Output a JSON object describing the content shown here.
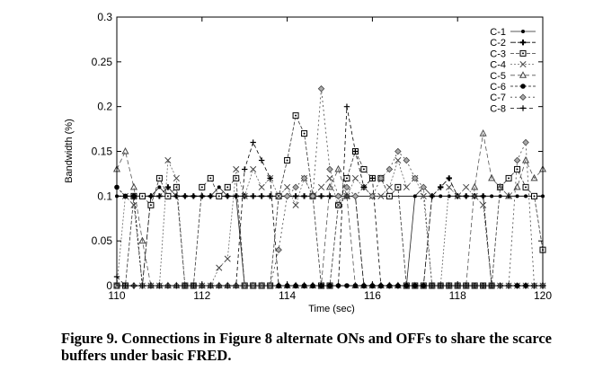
{
  "figure": {
    "caption": "Figure 9.  Connections in Figure 8 alternate ONs and OFFs to share the scarce buffers under basic FRED."
  },
  "chart_data": {
    "type": "line",
    "title": "",
    "xlabel": "Time (sec)",
    "ylabel": "Bandwidth (%)",
    "xlim": [
      110,
      120
    ],
    "ylim": [
      0,
      0.3
    ],
    "xticks": [
      110,
      112,
      114,
      116,
      118,
      120
    ],
    "yticks": [
      0,
      0.05,
      0.1,
      0.15,
      0.2,
      0.25,
      0.3
    ],
    "xtick_labels": [
      "110",
      "112",
      "114",
      "116",
      "118",
      "120"
    ],
    "ytick_labels": [
      "0",
      "0.05",
      "0.1",
      "0.15",
      "0.2",
      "0.25",
      "0.3"
    ],
    "grid": false,
    "legend_position": "top-right",
    "reference_line_y": 0.1,
    "series": [
      {
        "name": "C-1",
        "marker": "dot",
        "x": [
          110.0,
          110.2,
          110.4,
          110.6,
          110.8,
          111.0,
          111.2,
          111.4,
          111.6,
          111.8,
          112.0,
          112.2,
          112.4,
          112.6,
          112.8,
          113.0,
          113.2,
          113.4,
          113.6,
          113.8,
          114.0,
          114.2,
          114.4,
          114.6,
          114.8,
          115.0,
          115.2,
          115.4,
          115.6,
          115.8,
          116.0,
          116.2,
          116.4,
          116.6,
          116.8,
          117.0,
          117.2,
          117.4,
          117.6,
          117.8,
          118.0,
          118.2,
          118.4,
          118.6,
          118.8,
          119.0,
          119.2,
          119.4,
          119.6,
          119.8,
          120.0
        ],
        "y": [
          0.1,
          0.1,
          0.1,
          0.1,
          0.1,
          0.11,
          0.1,
          0.1,
          0.1,
          0.1,
          0.1,
          0.1,
          0.11,
          0.1,
          0.1,
          0.0,
          0.0,
          0.0,
          0.0,
          0.0,
          0.0,
          0.0,
          0.0,
          0.0,
          0.0,
          0.0,
          0.0,
          0.0,
          0.0,
          0.0,
          0.0,
          0.0,
          0.0,
          0.0,
          0.0,
          0.1,
          0.11,
          0.1,
          0.1,
          0.1,
          0.1,
          0.1,
          0.1,
          0.1,
          0.1,
          0.1,
          0.1,
          0.1,
          0.1,
          0.1,
          0.1
        ]
      },
      {
        "name": "C-2",
        "marker": "plus-bold",
        "x": [
          110.0,
          110.2,
          110.4,
          110.6,
          110.8,
          111.0,
          111.2,
          111.4,
          111.6,
          111.8,
          112.0,
          112.2,
          112.4,
          112.6,
          112.8,
          113.0,
          113.2,
          113.4,
          113.6,
          113.8,
          114.0,
          114.2,
          114.4,
          114.6,
          114.8,
          115.0,
          115.2,
          115.4,
          115.6,
          115.8,
          116.0,
          116.2,
          116.4,
          116.6,
          116.8,
          117.0,
          117.2,
          117.4,
          117.6,
          117.8,
          118.0,
          118.2,
          118.4,
          118.6,
          118.8,
          119.0,
          119.2,
          119.4,
          119.6,
          119.8,
          120.0
        ],
        "y": [
          0.0,
          0.0,
          0.0,
          0.0,
          0.1,
          0.1,
          0.11,
          0.1,
          0.1,
          0.1,
          0.1,
          0.1,
          0.1,
          0.1,
          0.1,
          0.1,
          0.1,
          0.1,
          0.1,
          0.1,
          0.1,
          0.1,
          0.1,
          0.1,
          0.1,
          0.1,
          0.1,
          0.1,
          0.1,
          0.0,
          0.0,
          0.0,
          0.0,
          0.0,
          0.0,
          0.0,
          0.0,
          0.1,
          0.11,
          0.12,
          0.1,
          0.1,
          0.1,
          0.1,
          0.0,
          0.0,
          0.0,
          0.0,
          0.0,
          0.0,
          0.0
        ]
      },
      {
        "name": "C-3",
        "marker": "square-dot",
        "x": [
          110.0,
          110.2,
          110.4,
          110.6,
          110.8,
          111.0,
          111.2,
          111.4,
          111.6,
          111.8,
          112.0,
          112.2,
          112.4,
          112.6,
          112.8,
          113.0,
          113.2,
          113.4,
          113.6,
          113.8,
          114.0,
          114.2,
          114.4,
          114.6,
          114.8,
          115.0,
          115.2,
          115.4,
          115.6,
          115.8,
          116.0,
          116.2,
          116.4,
          116.6,
          116.8,
          117.0,
          117.2,
          117.4,
          117.6,
          117.8,
          118.0,
          118.2,
          118.4,
          118.6,
          118.8,
          119.0,
          119.2,
          119.4,
          119.6,
          119.8,
          120.0
        ],
        "y": [
          0.0,
          0.0,
          0.1,
          0.1,
          0.09,
          0.12,
          0.1,
          0.11,
          0.0,
          0.0,
          0.11,
          0.12,
          0.1,
          0.11,
          0.12,
          0.0,
          0.0,
          0.0,
          0.0,
          0.1,
          0.14,
          0.19,
          0.17,
          0.1,
          0.0,
          0.0,
          0.09,
          0.12,
          0.15,
          0.13,
          0.12,
          0.12,
          0.1,
          0.11,
          0.0,
          0.0,
          0.0,
          0.0,
          0.0,
          0.0,
          0.0,
          0.0,
          0.0,
          0.0,
          0.0,
          0.11,
          0.12,
          0.13,
          0.11,
          0.1,
          0.04
        ]
      },
      {
        "name": "C-4",
        "marker": "x",
        "x": [
          110.0,
          110.2,
          110.4,
          110.6,
          110.8,
          111.0,
          111.2,
          111.4,
          111.6,
          111.8,
          112.0,
          112.2,
          112.4,
          112.6,
          112.8,
          113.0,
          113.2,
          113.4,
          113.6,
          113.8,
          114.0,
          114.2,
          114.4,
          114.6,
          114.8,
          115.0,
          115.2,
          115.4,
          115.6,
          115.8,
          116.0,
          116.2,
          116.4,
          116.6,
          116.8,
          117.0,
          117.2,
          117.4,
          117.6,
          117.8,
          118.0,
          118.2,
          118.4,
          118.6,
          118.8,
          119.0,
          119.2,
          119.4,
          119.6,
          119.8,
          120.0
        ],
        "y": [
          0.0,
          0.1,
          0.09,
          0.0,
          0.0,
          0.0,
          0.14,
          0.12,
          0.0,
          0.0,
          0.0,
          0.0,
          0.02,
          0.03,
          0.13,
          0.1,
          0.13,
          0.11,
          0.12,
          0.1,
          0.11,
          0.09,
          0.12,
          0.1,
          0.11,
          0.12,
          0.09,
          0.1,
          0.12,
          0.11,
          0.1,
          0.1,
          0.11,
          0.14,
          0.11,
          0.12,
          0.1,
          0.0,
          0.0,
          0.11,
          0.1,
          0.11,
          0.1,
          0.09,
          0.0,
          0.0,
          0.0,
          0.0,
          0.0,
          0.0,
          0.0
        ]
      },
      {
        "name": "C-5",
        "marker": "triangle",
        "x": [
          110.0,
          110.2,
          110.4,
          110.6,
          110.8,
          111.0,
          111.2,
          111.4,
          111.6,
          111.8,
          112.0,
          112.2,
          112.4,
          112.6,
          112.8,
          113.0,
          113.2,
          113.4,
          113.6,
          113.8,
          114.0,
          114.2,
          114.4,
          114.6,
          114.8,
          115.0,
          115.2,
          115.4,
          115.6,
          115.8,
          116.0,
          116.2,
          116.4,
          116.6,
          116.8,
          117.0,
          117.2,
          117.4,
          117.6,
          117.8,
          118.0,
          118.2,
          118.4,
          118.6,
          118.8,
          119.0,
          119.2,
          119.4,
          119.6,
          119.8,
          120.0
        ],
        "y": [
          0.13,
          0.15,
          0.11,
          0.05,
          0.0,
          0.0,
          0.0,
          0.0,
          0.0,
          0.0,
          0.0,
          0.0,
          0.0,
          0.0,
          0.0,
          0.0,
          0.0,
          0.0,
          0.0,
          0.0,
          0.0,
          0.0,
          0.0,
          0.0,
          0.0,
          0.11,
          0.13,
          0.1,
          0.0,
          0.0,
          0.0,
          0.0,
          0.0,
          0.0,
          0.0,
          0.0,
          0.0,
          0.0,
          0.0,
          0.0,
          0.0,
          0.0,
          0.11,
          0.17,
          0.12,
          0.11,
          0.1,
          0.11,
          0.14,
          0.12,
          0.13
        ]
      },
      {
        "name": "C-6",
        "marker": "dot-large",
        "x": [
          110.0,
          110.2,
          110.4,
          110.6,
          110.8,
          111.0,
          111.2,
          111.4,
          111.6,
          111.8,
          112.0,
          112.2,
          112.4,
          112.6,
          112.8,
          113.0,
          113.2,
          113.4,
          113.6,
          113.8,
          114.0,
          114.2,
          114.4,
          114.6,
          114.8,
          115.0,
          115.2,
          115.4,
          115.6,
          115.8,
          116.0,
          116.2,
          116.4,
          116.6,
          116.8,
          117.0,
          117.2,
          117.4,
          117.6,
          117.8,
          118.0,
          118.2,
          118.4,
          118.6,
          118.8,
          119.0,
          119.2,
          119.4,
          119.6,
          119.8,
          120.0
        ],
        "y": [
          0.11,
          0.1,
          0.1,
          0.0,
          0.0,
          0.0,
          0.0,
          0.0,
          0.0,
          0.0,
          0.0,
          0.0,
          0.0,
          0.0,
          0.0,
          0.0,
          0.0,
          0.0,
          0.0,
          0.0,
          0.0,
          0.0,
          0.0,
          0.0,
          0.0,
          0.0,
          0.0,
          0.0,
          0.0,
          0.0,
          0.0,
          0.0,
          0.0,
          0.0,
          0.0,
          0.0,
          0.0,
          0.0,
          0.0,
          0.0,
          0.0,
          0.0,
          0.0,
          0.0,
          0.0,
          0.0,
          0.0,
          0.0,
          0.0,
          0.0,
          0.0
        ]
      },
      {
        "name": "C-7",
        "marker": "diamond",
        "x": [
          110.0,
          110.2,
          110.4,
          110.6,
          110.8,
          111.0,
          111.2,
          111.4,
          111.6,
          111.8,
          112.0,
          112.2,
          112.4,
          112.6,
          112.8,
          113.0,
          113.2,
          113.4,
          113.6,
          113.8,
          114.0,
          114.2,
          114.4,
          114.6,
          114.8,
          115.0,
          115.2,
          115.4,
          115.6,
          115.8,
          116.0,
          116.2,
          116.4,
          116.6,
          116.8,
          117.0,
          117.2,
          117.4,
          117.6,
          117.8,
          118.0,
          118.2,
          118.4,
          118.6,
          118.8,
          119.0,
          119.2,
          119.4,
          119.6,
          119.8,
          120.0
        ],
        "y": [
          0.0,
          0.0,
          0.0,
          0.0,
          0.0,
          0.0,
          0.0,
          0.0,
          0.0,
          0.0,
          0.0,
          0.0,
          0.0,
          0.0,
          0.0,
          0.0,
          0.0,
          0.0,
          0.0,
          0.04,
          0.1,
          0.11,
          0.12,
          0.1,
          0.22,
          0.13,
          0.1,
          0.11,
          0.1,
          0.11,
          0.1,
          0.12,
          0.13,
          0.15,
          0.14,
          0.12,
          0.11,
          0.0,
          0.0,
          0.0,
          0.0,
          0.0,
          0.0,
          0.0,
          0.0,
          0.0,
          0.0,
          0.14,
          0.16,
          0.0,
          0.0
        ]
      },
      {
        "name": "C-8",
        "marker": "plus",
        "x": [
          110.0,
          110.2,
          110.4,
          110.6,
          110.8,
          111.0,
          111.2,
          111.4,
          111.6,
          111.8,
          112.0,
          112.2,
          112.4,
          112.6,
          112.8,
          113.0,
          113.2,
          113.4,
          113.6,
          113.8,
          114.0,
          114.2,
          114.4,
          114.6,
          114.8,
          115.0,
          115.2,
          115.4,
          115.6,
          115.8,
          116.0,
          116.2,
          116.4,
          116.6,
          116.8,
          117.0,
          117.2,
          117.4,
          117.6,
          117.8,
          118.0,
          118.2,
          118.4,
          118.6,
          118.8,
          119.0,
          119.2,
          119.4,
          119.6,
          119.8,
          120.0
        ],
        "y": [
          0.01,
          0.0,
          0.0,
          0.0,
          0.0,
          0.0,
          0.0,
          0.0,
          0.0,
          0.0,
          0.0,
          0.0,
          0.0,
          0.0,
          0.0,
          0.13,
          0.16,
          0.14,
          0.12,
          0.0,
          0.0,
          0.0,
          0.0,
          0.0,
          0.0,
          0.0,
          0.0,
          0.2,
          0.15,
          0.11,
          0.12,
          0.0,
          0.0,
          0.0,
          0.0,
          0.0,
          0.0,
          0.0,
          0.0,
          0.0,
          0.0,
          0.0,
          0.0,
          0.0,
          0.0,
          0.0,
          0.0,
          0.0,
          0.0,
          0.0,
          0.0
        ]
      }
    ]
  }
}
